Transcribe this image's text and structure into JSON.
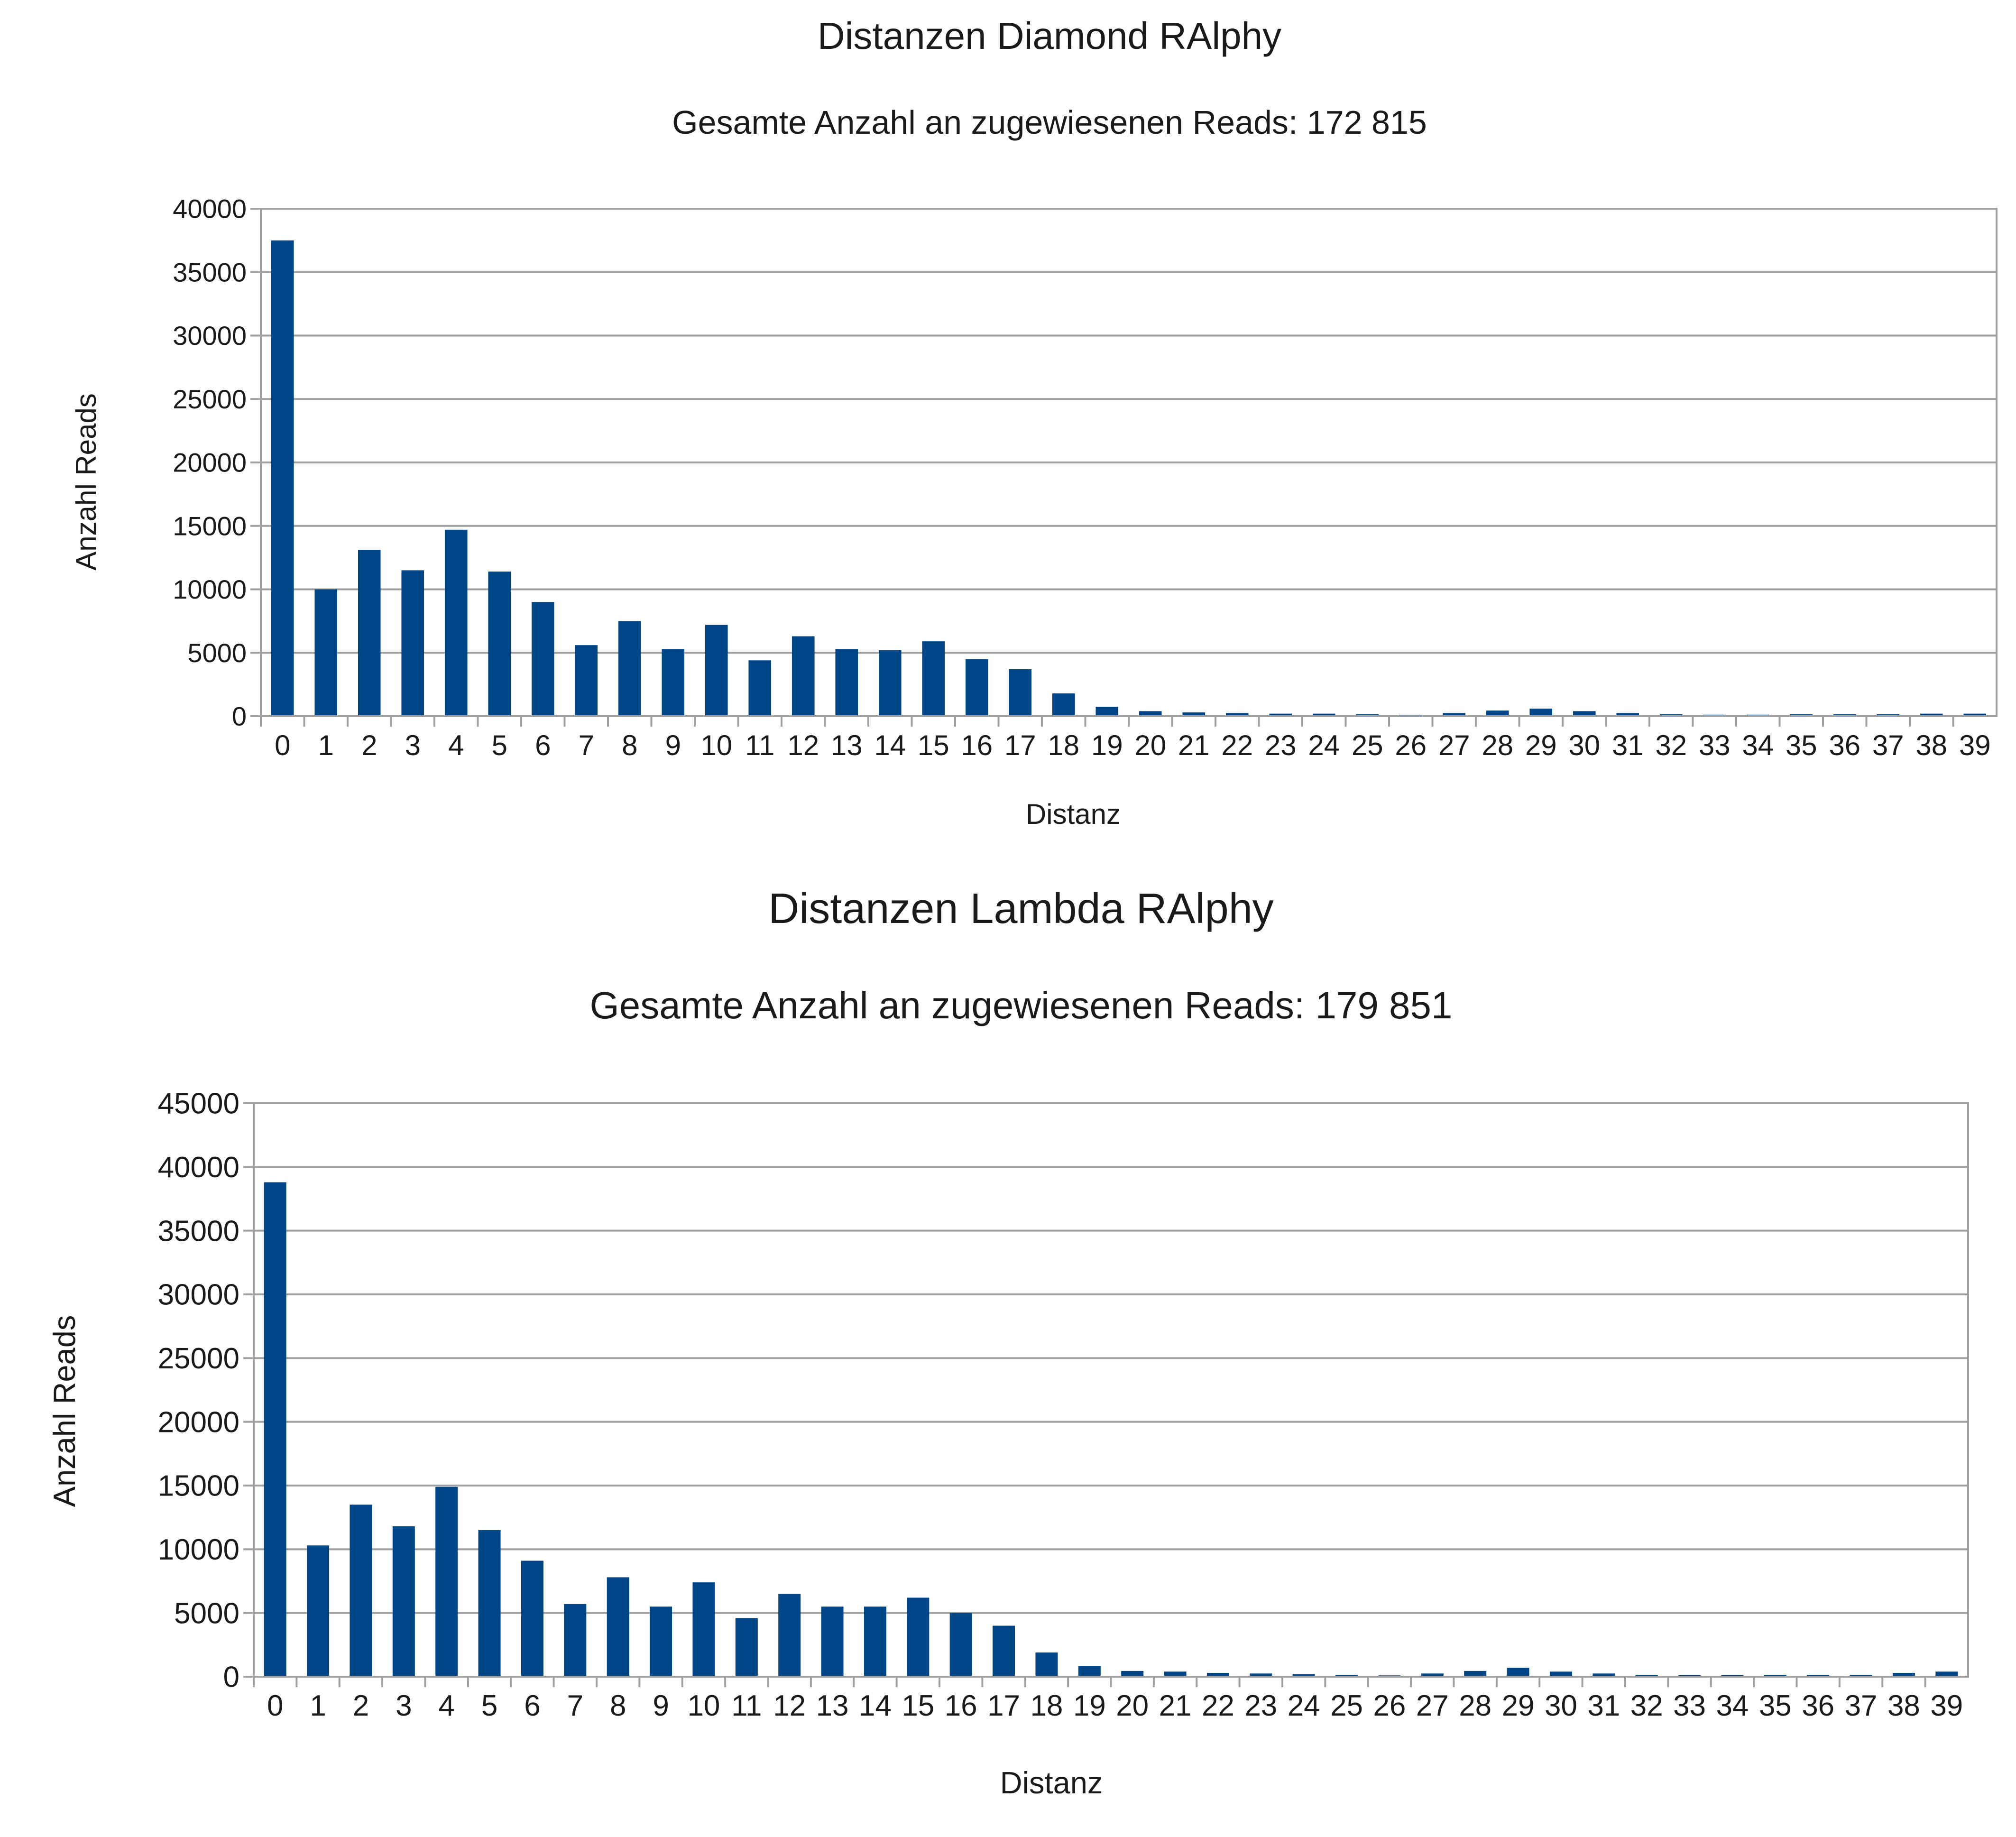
{
  "chart_data": [
    {
      "type": "bar",
      "title": "Distanzen Diamond RAlphy",
      "subtitle": "Gesamte Anzahl an zugewiesenen Reads: 172 815",
      "xlabel": "Distanz",
      "ylabel": "Anzahl Reads",
      "ylim": [
        0,
        40000
      ],
      "yticks": [
        "0",
        "5000",
        "10000",
        "15000",
        "20000",
        "25000",
        "30000",
        "35000",
        "40000"
      ],
      "grid": true,
      "bar_color": "#004586",
      "categories": [
        "0",
        "1",
        "2",
        "3",
        "4",
        "5",
        "6",
        "7",
        "8",
        "9",
        "10",
        "11",
        "12",
        "13",
        "14",
        "15",
        "16",
        "17",
        "18",
        "19",
        "20",
        "21",
        "22",
        "23",
        "24",
        "25",
        "26",
        "27",
        "28",
        "29",
        "30",
        "31",
        "32",
        "33",
        "34",
        "35",
        "36",
        "37",
        "38",
        "39"
      ],
      "values": [
        37500,
        10000,
        13100,
        11500,
        14700,
        11400,
        9000,
        5600,
        7500,
        5300,
        7200,
        4400,
        6300,
        5300,
        5200,
        5900,
        4500,
        3700,
        1800,
        750,
        400,
        300,
        250,
        200,
        200,
        150,
        100,
        250,
        450,
        600,
        400,
        250,
        150,
        120,
        120,
        150,
        150,
        150,
        200,
        200
      ]
    },
    {
      "type": "bar",
      "title": "Distanzen Lambda RAlphy",
      "subtitle": "Gesamte Anzahl an zugewiesenen Reads: 179 851",
      "xlabel": "Distanz",
      "ylabel": "Anzahl Reads",
      "ylim": [
        0,
        45000
      ],
      "yticks": [
        "0",
        "5000",
        "10000",
        "15000",
        "20000",
        "25000",
        "30000",
        "35000",
        "40000",
        "45000"
      ],
      "grid": true,
      "bar_color": "#004586",
      "categories": [
        "0",
        "1",
        "2",
        "3",
        "4",
        "5",
        "6",
        "7",
        "8",
        "9",
        "10",
        "11",
        "12",
        "13",
        "14",
        "15",
        "16",
        "17",
        "18",
        "19",
        "20",
        "21",
        "22",
        "23",
        "24",
        "25",
        "26",
        "27",
        "28",
        "29",
        "30",
        "31",
        "32",
        "33",
        "34",
        "35",
        "36",
        "37",
        "38",
        "39"
      ],
      "values": [
        38800,
        10300,
        13500,
        11800,
        14900,
        11500,
        9100,
        5700,
        7800,
        5500,
        7400,
        4600,
        6500,
        5500,
        5500,
        6200,
        5000,
        4000,
        1900,
        850,
        450,
        400,
        300,
        250,
        200,
        150,
        100,
        250,
        450,
        700,
        400,
        250,
        150,
        120,
        120,
        150,
        150,
        150,
        300,
        400
      ]
    }
  ]
}
